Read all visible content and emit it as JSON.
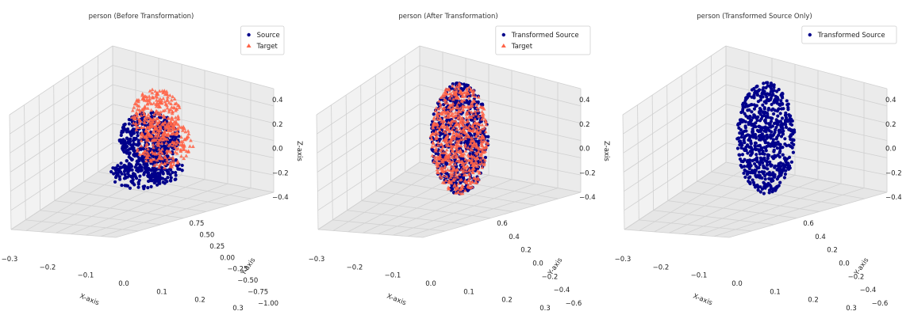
{
  "chart_data": [
    {
      "type": "scatter",
      "projection": "3d",
      "title": "person (Before Transformation)",
      "xlabel": "X-axis",
      "ylabel": "Y-axis",
      "zlabel": "Z-axis",
      "xticks": [
        "−0.3",
        "−0.2",
        "−0.1",
        "0.0",
        "0.1",
        "0.2",
        "0.3"
      ],
      "yticks": [
        "−1.00",
        "−0.75",
        "−0.50",
        "−0.25",
        "0.00",
        "0.25",
        "0.50",
        "0.75"
      ],
      "zticks": [
        "−0.4",
        "−0.2",
        "0.0",
        "0.2",
        "0.4"
      ],
      "grid": true,
      "legend_position": "top-right",
      "series": [
        {
          "name": "Source",
          "marker": "circle",
          "color": "#00008b",
          "clusters": [
            {
              "cx": 0.0,
              "cy": 0.05,
              "rx": 0.34,
              "ry": 0.22,
              "n": 420
            },
            {
              "cx": -0.12,
              "cy": -0.25,
              "rx": 0.32,
              "ry": 0.13,
              "n": 160
            },
            {
              "cx": 0.18,
              "cy": -0.22,
              "rx": 0.22,
              "ry": 0.12,
              "n": 90
            }
          ]
        },
        {
          "name": "Target",
          "marker": "triangle",
          "color": "#ff6347",
          "clusters": [
            {
              "cx": 0.08,
              "cy": 0.25,
              "rx": 0.28,
              "ry": 0.22,
              "n": 260
            },
            {
              "cx": 0.18,
              "cy": 0.0,
              "rx": 0.33,
              "ry": 0.2,
              "n": 200
            }
          ]
        }
      ]
    },
    {
      "type": "scatter",
      "projection": "3d",
      "title": "person (After Transformation)",
      "xlabel": "X-axis",
      "ylabel": "Y-axis",
      "zlabel": "Z-axis",
      "xticks": [
        "−0.3",
        "−0.2",
        "−0.1",
        "0.0",
        "0.1",
        "0.2",
        "0.3"
      ],
      "yticks": [
        "−0.6",
        "−0.4",
        "−0.2",
        "0.0",
        "0.2",
        "0.4",
        "0.6"
      ],
      "zticks": [
        "−0.4",
        "−0.2",
        "0.0",
        "0.2",
        "0.4"
      ],
      "grid": true,
      "legend_position": "top-right",
      "series": [
        {
          "name": "Transformed Source",
          "marker": "circle",
          "color": "#00008b",
          "clusters": [
            {
              "cx": 0.02,
              "cy": 0.05,
              "rx": 0.33,
              "ry": 0.47,
              "n": 650
            }
          ]
        },
        {
          "name": "Target",
          "marker": "triangle",
          "color": "#ff6347",
          "clusters": [
            {
              "cx": 0.02,
              "cy": 0.05,
              "rx": 0.33,
              "ry": 0.47,
              "n": 650
            }
          ]
        }
      ]
    },
    {
      "type": "scatter",
      "projection": "3d",
      "title": "person (Transformed Source Only)",
      "xlabel": "X-axis",
      "ylabel": "Y-axis",
      "zlabel": "",
      "xticks": [
        "−0.3",
        "−0.2",
        "−0.1",
        "0.0",
        "0.1",
        "0.2",
        "0.3"
      ],
      "yticks": [
        "−0.6",
        "−0.4",
        "−0.2",
        "0.0",
        "0.2",
        "0.4",
        "0.6"
      ],
      "zticks": [
        "−0.4",
        "−0.2",
        "0.0",
        "0.2",
        "0.4"
      ],
      "grid": true,
      "legend_position": "top-right",
      "series": [
        {
          "name": "Transformed Source",
          "marker": "circle",
          "color": "#00008b",
          "clusters": [
            {
              "cx": 0.02,
              "cy": 0.05,
              "rx": 0.33,
              "ry": 0.47,
              "n": 650
            }
          ]
        }
      ]
    }
  ]
}
